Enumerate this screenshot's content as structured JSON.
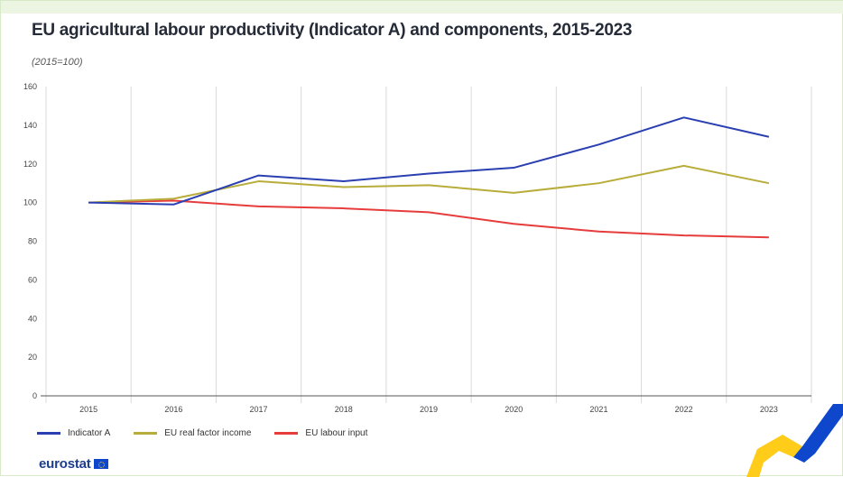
{
  "title": "EU agricultural labour productivity (Indicator A) and components, 2015-2023",
  "subtitle": "(2015=100)",
  "logo_text": "eurostat",
  "colors": {
    "indicator_a": "#2a3fb1",
    "real_factor_income": "#b8ad3a",
    "labour_input": "#e63c3c",
    "grid": "#d9d9d9",
    "deco_yellow": "#ffcc1a",
    "deco_blue": "#0e47cb"
  },
  "chart_data": {
    "type": "line",
    "title": "EU agricultural labour productivity (Indicator A) and components, 2015-2023",
    "subtitle": "(2015=100)",
    "xlabel": "",
    "ylabel": "",
    "x": [
      "2015",
      "2016",
      "2017",
      "2018",
      "2019",
      "2020",
      "2021",
      "2022",
      "2023"
    ],
    "yticks": [
      "0",
      "20",
      "40",
      "60",
      "80",
      "100",
      "120",
      "140",
      "160"
    ],
    "ylim": [
      0,
      160
    ],
    "grid": "vertical",
    "legend_position": "bottom-left",
    "series": [
      {
        "name": "Indicator A",
        "color": "#2a3fb1",
        "values": [
          100,
          99,
          114,
          111,
          115,
          118,
          130,
          144,
          134
        ]
      },
      {
        "name": "EU real factor income",
        "color": "#b8ad3a",
        "values": [
          100,
          102,
          111,
          108,
          109,
          105,
          110,
          119,
          110
        ]
      },
      {
        "name": "EU labour input",
        "color": "#e63c3c",
        "values": [
          100,
          101,
          98,
          97,
          95,
          89,
          85,
          83,
          82
        ]
      }
    ]
  }
}
